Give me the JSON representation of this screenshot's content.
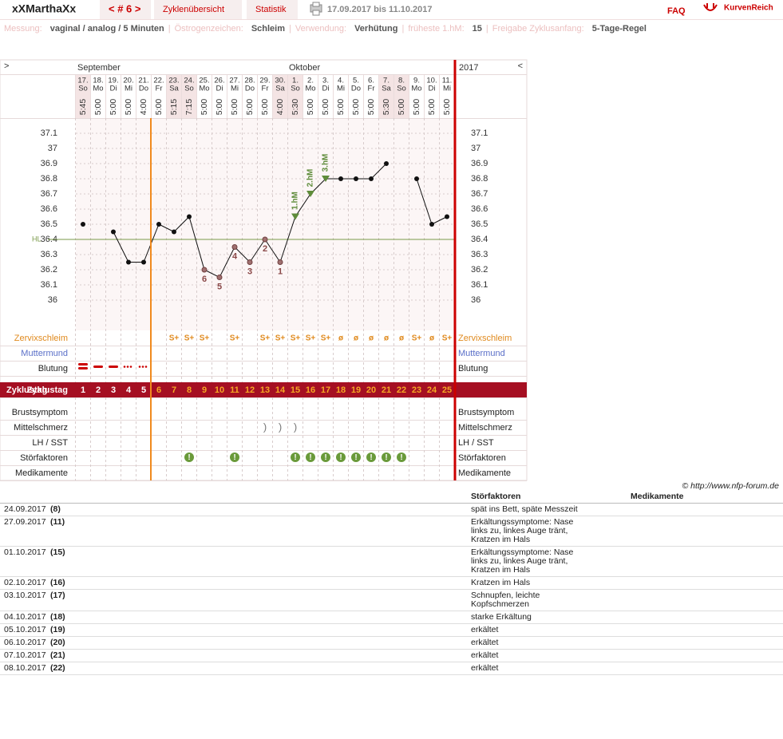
{
  "header": {
    "user": "xXMarthaXx",
    "cycle_nav": "< # 6 >",
    "tabs": [
      "Zyklenübersicht",
      "Statistik"
    ],
    "period": "17.09.2017 bis 11.10.2017",
    "faq": "FAQ",
    "brand": "KurvenReich"
  },
  "info": {
    "separator": "|",
    "items": [
      {
        "label": "Messung:",
        "value": "vaginal / analog / 5 Minuten"
      },
      {
        "label": "Östrogenzeichen:",
        "value": "Schleim"
      },
      {
        "label": "Verwendung:",
        "value": "Verhütung"
      },
      {
        "label": "früheste 1.hM:",
        "value": "15"
      },
      {
        "label": "Freigabe Zyklusanfang:",
        "value": "5-Tage-Regel"
      }
    ]
  },
  "chart": {
    "nav_left": ">",
    "nav_right": "<",
    "months": [
      "September",
      "Oktober"
    ],
    "year": "2017",
    "dates": [
      "17.",
      "18.",
      "19.",
      "20.",
      "21.",
      "22.",
      "23.",
      "24.",
      "25.",
      "26.",
      "27.",
      "28.",
      "29.",
      "30.",
      "1.",
      "2.",
      "3.",
      "4.",
      "5.",
      "6.",
      "7.",
      "8.",
      "9.",
      "10.",
      "11."
    ],
    "weekdays": [
      "So",
      "Mo",
      "Di",
      "Mi",
      "Do",
      "Fr",
      "Sa",
      "So",
      "Mo",
      "Di",
      "Mi",
      "Do",
      "Fr",
      "Sa",
      "So",
      "Mo",
      "Di",
      "Mi",
      "Do",
      "Fr",
      "Sa",
      "So",
      "Mo",
      "Di",
      "Mi"
    ],
    "times": [
      "5:45",
      "5:00",
      "5:00",
      "5:00",
      "4:00",
      "5:00",
      "5:15",
      "7:15",
      "5:00",
      "5:00",
      "5:00",
      "5:00",
      "5:00",
      "4:00",
      "5:30",
      "5:00",
      "5:00",
      "5:00",
      "5:00",
      "5:00",
      "5:30",
      "5:00",
      "5:00",
      "5:00",
      "5:00"
    ],
    "temperature": [
      36.5,
      null,
      36.45,
      36.25,
      36.25,
      36.5,
      36.45,
      36.55,
      36.2,
      36.15,
      36.35,
      36.25,
      36.4,
      36.25,
      36.55,
      36.7,
      36.8,
      36.8,
      36.8,
      36.8,
      36.9,
      null,
      36.8,
      36.5,
      36.55
    ],
    "point_labels": [
      null,
      null,
      null,
      null,
      null,
      null,
      null,
      null,
      "6",
      "5",
      "4",
      "3",
      "2",
      "1",
      null,
      null,
      null,
      null,
      null,
      null,
      null,
      null,
      null,
      null,
      null
    ],
    "hm_labels": [
      null,
      null,
      null,
      null,
      null,
      null,
      null,
      null,
      null,
      null,
      null,
      null,
      null,
      null,
      "1.hM",
      "2.hM",
      "3.hM",
      null,
      null,
      null,
      null,
      null,
      null,
      null,
      null
    ],
    "ylim": [
      35.8,
      37.2
    ],
    "yticks": [
      36,
      36.1,
      36.2,
      36.3,
      36.4,
      36.5,
      36.6,
      36.7,
      36.8,
      36.9,
      37,
      37.1
    ],
    "hl": {
      "label": "HL",
      "value": 36.4
    },
    "rows": {
      "zervixschleim": {
        "label": "Zervixschleim",
        "values": [
          null,
          null,
          null,
          null,
          null,
          null,
          "S+",
          "S+",
          "S+",
          null,
          "S+",
          null,
          "S+",
          "S+",
          "S+",
          "S+",
          "S+",
          "ø",
          "ø",
          "ø",
          "ø",
          "ø",
          "S+",
          "ø",
          "S+"
        ]
      },
      "muttermund": {
        "label": "Muttermund"
      },
      "blutung": {
        "label": "Blutung"
      },
      "zyklustag": {
        "label": "Zyklustag",
        "values": [
          1,
          2,
          3,
          4,
          5,
          6,
          7,
          8,
          9,
          10,
          11,
          12,
          13,
          14,
          15,
          16,
          17,
          18,
          19,
          20,
          21,
          22,
          23,
          24,
          25
        ]
      },
      "brustsymptom": {
        "label": "Brustsymptom"
      },
      "mittelschmerz": {
        "label": "Mittelschmerz",
        "values": [
          null,
          null,
          null,
          null,
          null,
          null,
          null,
          null,
          null,
          null,
          null,
          null,
          ")",
          ")",
          ")",
          null,
          null,
          null,
          null,
          null,
          null,
          null,
          null,
          null,
          null
        ]
      },
      "lh_sst": {
        "label": "LH / SST"
      },
      "stoerfaktoren": {
        "label": "Störfaktoren",
        "values": [
          null,
          null,
          null,
          null,
          null,
          null,
          null,
          "!",
          null,
          null,
          "!",
          null,
          null,
          null,
          "!",
          "!",
          "!",
          "!",
          "!",
          "!",
          "!",
          "!",
          null,
          null,
          null
        ]
      },
      "medikamente": {
        "label": "Medikamente"
      }
    }
  },
  "footer": {
    "copyright": "© http://www.nfp-forum.de",
    "columns": [
      "Störfaktoren",
      "Medikamente"
    ],
    "entries": [
      {
        "date": "24.09.2017",
        "day": "(8)",
        "note": "spät ins Bett, späte Messzeit"
      },
      {
        "date": "27.09.2017",
        "day": "(11)",
        "note": "Erkältungssymptome: Nase links zu, linkes Auge tränt, Kratzen im Hals"
      },
      {
        "date": "01.10.2017",
        "day": "(15)",
        "note": "Erkältungssymptome: Nase links zu, linkes Auge tränt, Kratzen im Hals"
      },
      {
        "date": "02.10.2017",
        "day": "(16)",
        "note": "Kratzen im Hals"
      },
      {
        "date": "03.10.2017",
        "day": "(17)",
        "note": "Schnupfen, leichte Kopfschmerzen"
      },
      {
        "date": "04.10.2017",
        "day": "(18)",
        "note": "starke Erkältung"
      },
      {
        "date": "05.10.2017",
        "day": "(19)",
        "note": "erkältet"
      },
      {
        "date": "06.10.2017",
        "day": "(20)",
        "note": "erkältet"
      },
      {
        "date": "07.10.2017",
        "day": "(21)",
        "note": "erkältet"
      },
      {
        "date": "08.10.2017",
        "day": "(22)",
        "note": "erkältet"
      }
    ]
  }
}
